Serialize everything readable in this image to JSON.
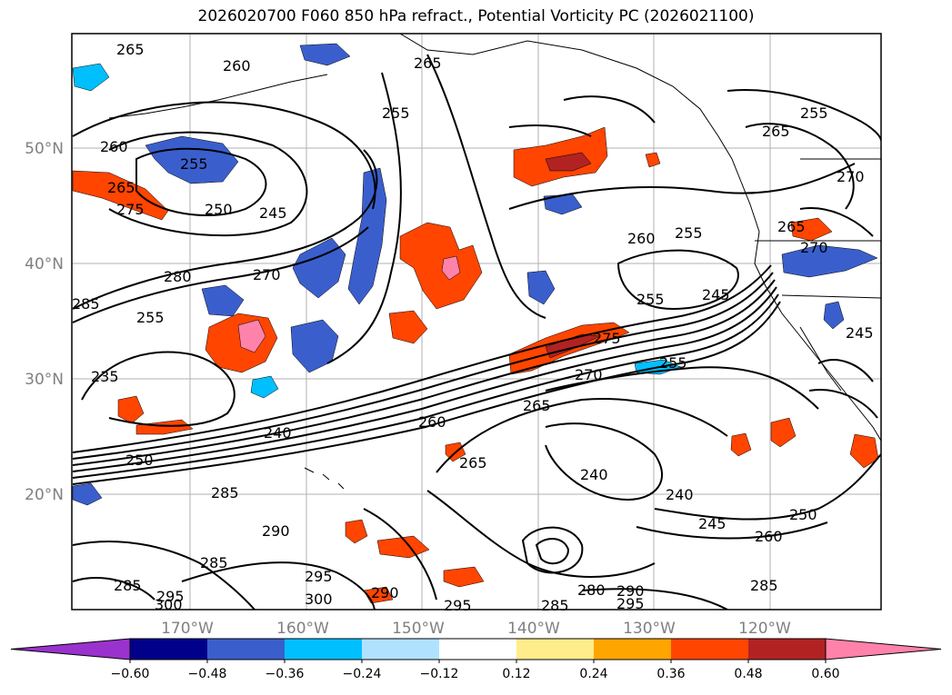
{
  "title": "2026020700 F060 850 hPa refract., Potential Vorticity PC (2026021100)",
  "map": {
    "lat_labels": [
      "50°N",
      "40°N",
      "30°N",
      "20°N"
    ],
    "lon_labels": [
      "170°W",
      "160°W",
      "150°W",
      "140°W",
      "130°W",
      "120°W"
    ]
  },
  "colorbar": {
    "tick_labels": [
      "−0.60",
      "−0.48",
      "−0.36",
      "−0.24",
      "−0.12",
      "0.12",
      "0.24",
      "0.36",
      "0.48",
      "0.60"
    ],
    "colors": [
      "#9a32cd",
      "#00008b",
      "#3a5fcd",
      "#00bfff",
      "#b0e2ff",
      "#ffffff",
      "#ffec8b",
      "#ffa500",
      "#ff4500",
      "#b22222",
      "#ff82ab"
    ]
  },
  "contour_labels": [
    "265",
    "260",
    "265",
    "255",
    "260",
    "255",
    "265",
    "275",
    "250",
    "245",
    "280",
    "270",
    "285",
    "255",
    "235",
    "240",
    "250",
    "260",
    "265",
    "270",
    "275",
    "255",
    "240",
    "240",
    "245",
    "250",
    "260",
    "285",
    "290",
    "285",
    "295",
    "300",
    "285",
    "295",
    "300",
    "290",
    "295",
    "285",
    "280",
    "290",
    "295",
    "285",
    "265",
    "255",
    "270",
    "265",
    "270",
    "245",
    "255",
    "245",
    "260",
    "265",
    "255"
  ]
}
